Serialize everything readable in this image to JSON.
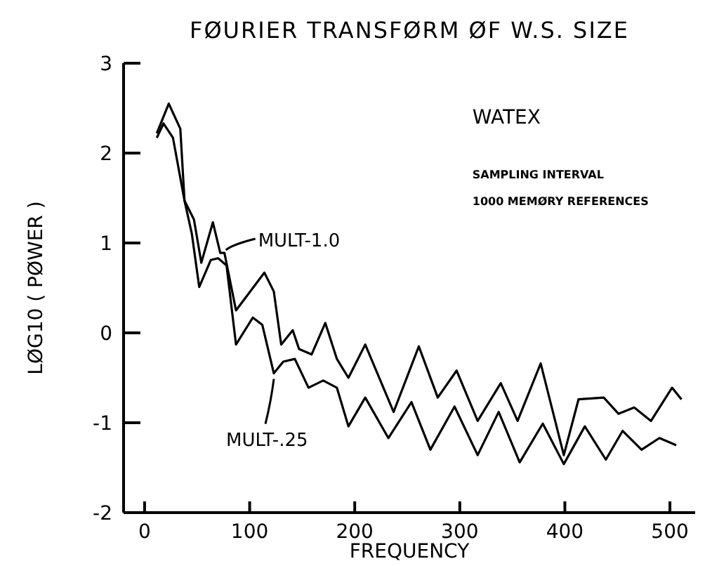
{
  "chart_data": {
    "type": "line",
    "title": "FØURIER TRANSFØRM ØF W.S. SIZE",
    "xlabel": "FREQUENCY",
    "ylabel": "LØG10 ( PØWER )",
    "annotations": [
      "WATEX",
      "SAMPLING INTERVAL",
      "1000 MEMØRY REFERENCES"
    ],
    "xlim": [
      -20,
      524
    ],
    "ylim": [
      -2,
      3
    ],
    "xticks": [
      0,
      100,
      200,
      300,
      400,
      500
    ],
    "yticks": [
      -2,
      -1,
      0,
      1,
      2,
      3
    ],
    "grid": false,
    "marker": "none",
    "line_style": "solid",
    "series": [
      {
        "name": "MULT-1.0",
        "color": "#000000",
        "x": [
          11.6,
          23,
          34,
          38,
          47,
          54,
          65,
          72,
          76,
          87,
          114,
          123,
          130,
          141,
          147,
          159,
          172,
          183,
          194,
          210,
          237,
          261,
          279,
          297,
          317,
          339,
          355,
          377,
          399,
          413,
          437,
          451,
          466,
          482,
          502,
          511
        ],
        "values": [
          2.22,
          2.55,
          2.27,
          1.47,
          1.26,
          0.78,
          1.23,
          0.89,
          0.89,
          0.25,
          0.67,
          0.46,
          -0.13,
          0.03,
          -0.18,
          -0.24,
          0.11,
          -0.29,
          -0.5,
          -0.13,
          -0.88,
          -0.15,
          -0.72,
          -0.42,
          -0.98,
          -0.56,
          -0.98,
          -0.34,
          -1.36,
          -0.74,
          -0.72,
          -0.9,
          -0.83,
          -0.98,
          -0.61,
          -0.74
        ]
      },
      {
        "name": "MULT-.25",
        "color": "#000000",
        "x": [
          11.6,
          18,
          27,
          38,
          45,
          52,
          63,
          70,
          78,
          87,
          103,
          112,
          123,
          132,
          143,
          156,
          170,
          183,
          194,
          210,
          232,
          254,
          272,
          295,
          317,
          337,
          357,
          379,
          399,
          419,
          439,
          455,
          473,
          490,
          506
        ],
        "values": [
          2.17,
          2.33,
          2.17,
          1.47,
          1.1,
          0.51,
          0.81,
          0.83,
          0.75,
          -0.13,
          0.17,
          0.09,
          -0.45,
          -0.32,
          -0.29,
          -0.61,
          -0.53,
          -0.61,
          -1.04,
          -0.72,
          -1.17,
          -0.77,
          -1.3,
          -0.82,
          -1.36,
          -0.88,
          -1.44,
          -1.01,
          -1.46,
          -1.04,
          -1.41,
          -1.09,
          -1.3,
          -1.17,
          -1.25
        ]
      }
    ]
  }
}
